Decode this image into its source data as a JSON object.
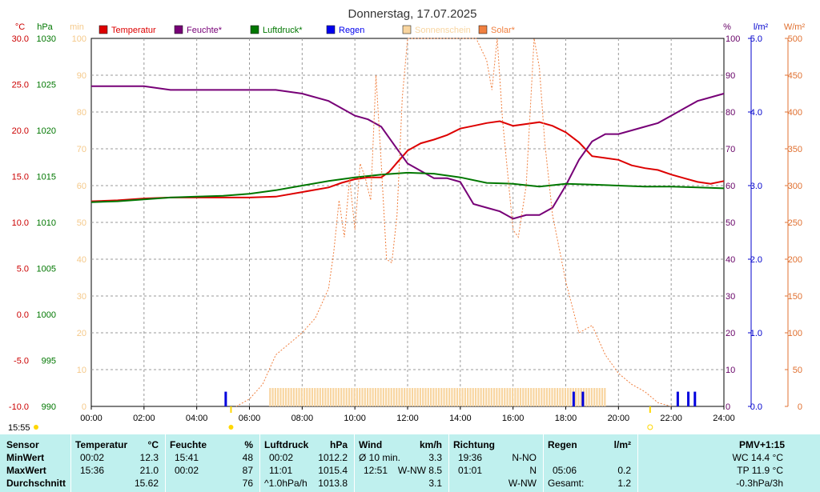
{
  "chart_data": {
    "type": "line",
    "title": "Donnerstag, 17.07.2025",
    "x_ticks": [
      "00:00",
      "02:00",
      "04:00",
      "06:00",
      "08:00",
      "10:00",
      "12:00",
      "14:00",
      "16:00",
      "18:00",
      "20:00",
      "22:00",
      "24:00"
    ],
    "x_range_hours": [
      0,
      24
    ],
    "axes": [
      {
        "key": "temp",
        "unit": "°C",
        "side": "left",
        "color": "#cc0000",
        "range": [
          -10,
          30
        ],
        "ticks": [
          "30.0",
          "25.0",
          "20.0",
          "15.0",
          "10.0",
          "5.0",
          "0.0",
          "-5.0",
          "-10.0"
        ]
      },
      {
        "key": "press",
        "unit": "hPa",
        "side": "left",
        "color": "#007700",
        "range": [
          990,
          1030
        ],
        "ticks": [
          "1030",
          "1025",
          "1020",
          "1015",
          "1010",
          "1005",
          "1000",
          "995",
          "990"
        ]
      },
      {
        "key": "min",
        "unit": "min",
        "side": "left",
        "color": "#f5c98a",
        "range": [
          0,
          100
        ],
        "ticks": [
          "100",
          "90",
          "80",
          "70",
          "60",
          "50",
          "40",
          "30",
          "20",
          "10",
          "0"
        ]
      },
      {
        "key": "hum",
        "unit": "%",
        "side": "right",
        "color": "#660066",
        "range": [
          0,
          100
        ],
        "ticks": [
          "100",
          "90",
          "80",
          "70",
          "60",
          "50",
          "40",
          "30",
          "20",
          "10",
          "0"
        ]
      },
      {
        "key": "rain",
        "unit": "l/m²",
        "side": "right",
        "color": "#0000cc",
        "range": [
          0,
          5
        ],
        "ticks": [
          "5.0",
          "4.0",
          "3.0",
          "2.0",
          "1.0",
          "0.0"
        ]
      },
      {
        "key": "solar",
        "unit": "W/m²",
        "side": "right",
        "color": "#e07030",
        "range": [
          0,
          500
        ],
        "ticks": [
          "500",
          "450",
          "400",
          "350",
          "300",
          "250",
          "200",
          "150",
          "100",
          "50",
          "0"
        ]
      }
    ],
    "legend": [
      {
        "label": "Temperatur",
        "color": "#dd0000"
      },
      {
        "label": "Feuchte*",
        "color": "#770077"
      },
      {
        "label": "Luftdruck*",
        "color": "#007700"
      },
      {
        "label": "Regen",
        "color": "#0000ee"
      },
      {
        "label": "Sonnenschein",
        "color": "#f8d5a0"
      },
      {
        "label": "Solar*",
        "color": "#f08040"
      }
    ],
    "series": [
      {
        "name": "Temperatur",
        "axis": "temp",
        "color": "#dd0000",
        "x": [
          0,
          1,
          2,
          3,
          4,
          5,
          6,
          7,
          8,
          9,
          9.5,
          10,
          10.5,
          11,
          11.3,
          11.6,
          12,
          12.5,
          13,
          13.5,
          14,
          14.5,
          15,
          15.5,
          16,
          16.5,
          17,
          17.5,
          18,
          18.5,
          19,
          19.5,
          20,
          20.5,
          21,
          21.5,
          22,
          22.5,
          23,
          23.5,
          24
        ],
        "y": [
          12.3,
          12.4,
          12.6,
          12.7,
          12.7,
          12.7,
          12.7,
          12.8,
          13.3,
          13.8,
          14.3,
          14.7,
          14.9,
          14.9,
          15.5,
          16.5,
          17.8,
          18.6,
          19.0,
          19.5,
          20.2,
          20.5,
          20.8,
          21.0,
          20.5,
          20.7,
          20.9,
          20.5,
          19.8,
          18.7,
          17.2,
          17.0,
          16.8,
          16.2,
          15.9,
          15.7,
          15.2,
          14.8,
          14.4,
          14.2,
          14.5
        ]
      },
      {
        "name": "Feuchte*",
        "axis": "hum",
        "color": "#770077",
        "x": [
          0,
          1,
          2,
          3,
          4,
          5,
          6,
          7,
          8,
          9,
          9.5,
          10,
          10.5,
          11,
          11.5,
          12,
          12.5,
          13,
          13.5,
          14,
          14.5,
          15,
          15.5,
          16,
          16.5,
          17,
          17.5,
          18,
          18.5,
          19,
          19.5,
          20,
          20.5,
          21,
          21.5,
          22,
          22.5,
          23,
          23.5,
          24
        ],
        "y": [
          87,
          87,
          87,
          86,
          86,
          86,
          86,
          86,
          85,
          83,
          81,
          79,
          78,
          76,
          71,
          66,
          64,
          62,
          62,
          61,
          55,
          54,
          53,
          51,
          52,
          52,
          54,
          60,
          67,
          72,
          74,
          74,
          75,
          76,
          77,
          79,
          81,
          83,
          84,
          85
        ]
      },
      {
        "name": "Luftdruck*",
        "axis": "press",
        "color": "#007700",
        "x": [
          0,
          1,
          2,
          3,
          4,
          5,
          6,
          7,
          8,
          9,
          10,
          11,
          12,
          13,
          14,
          15,
          16,
          17,
          18,
          19,
          20,
          21,
          22,
          23,
          24
        ],
        "y": [
          1012.2,
          1012.3,
          1012.5,
          1012.7,
          1012.8,
          1012.9,
          1013.1,
          1013.5,
          1014.0,
          1014.5,
          1014.9,
          1015.2,
          1015.4,
          1015.3,
          1014.9,
          1014.3,
          1014.2,
          1013.9,
          1014.2,
          1014.1,
          1014.0,
          1013.9,
          1013.9,
          1013.8,
          1013.7
        ]
      },
      {
        "name": "Solar*",
        "axis": "solar",
        "color": "#f08040",
        "x": [
          5.5,
          6,
          6.5,
          7,
          7.5,
          8,
          8.5,
          9,
          9.2,
          9.4,
          9.6,
          9.8,
          10,
          10.2,
          10.4,
          10.6,
          10.8,
          11,
          11.2,
          11.4,
          11.6,
          11.8,
          12,
          12.5,
          13,
          13.5,
          14,
          14.2,
          14.6,
          15,
          15.2,
          15.4,
          15.6,
          16,
          16.2,
          16.5,
          16.8,
          17,
          17.2,
          17.5,
          18,
          18.5,
          19,
          19.5,
          20,
          20.5,
          21,
          21.5,
          22
        ],
        "y": [
          0,
          10,
          30,
          70,
          85,
          100,
          120,
          160,
          210,
          280,
          230,
          310,
          240,
          330,
          310,
          280,
          450,
          330,
          200,
          195,
          260,
          420,
          500,
          500,
          500,
          500,
          500,
          500,
          500,
          470,
          430,
          500,
          390,
          240,
          230,
          300,
          500,
          460,
          360,
          260,
          170,
          100,
          110,
          70,
          45,
          30,
          20,
          5,
          0
        ]
      }
    ],
    "rain": {
      "axis": "rain",
      "color": "#0000dd",
      "x": [
        5.1,
        18.3,
        18.65,
        22.25,
        22.65,
        22.9
      ],
      "y": [
        0.2,
        0.2,
        0.2,
        0.2,
        0.2,
        0.2
      ]
    },
    "sunshine": {
      "color": "#f8d5a0",
      "start": 6.75,
      "end": 19.5,
      "value": 5
    },
    "markers": {
      "time_label": "15:55",
      "sunrise": 5.3,
      "sunset": 21.2
    }
  },
  "stats": {
    "sensor_header": "Sensor",
    "min_label": "MinWert",
    "max_label": "MaxWert",
    "avg_label": "Durchschnitt",
    "temp_header": "Temperatur",
    "temp_unit": "°C",
    "temp_min_time": "00:02",
    "temp_min_val": "12.3",
    "temp_max_time": "15:36",
    "temp_max_val": "21.0",
    "temp_avg_val": "15.62",
    "hum_header": "Feuchte",
    "hum_unit": "%",
    "hum_min_time": "15:41",
    "hum_min_val": "48",
    "hum_max_time": "00:02",
    "hum_max_val": "87",
    "hum_avg_val": "76",
    "press_header": "Luftdruck",
    "press_unit": "hPa",
    "press_min_time": "00:02",
    "press_min_val": "1012.2",
    "press_max_time": "11:01",
    "press_max_val": "1015.4",
    "press_avg_label": "^1.0hPa/h",
    "press_avg_val": "1013.8",
    "wind_header": "Wind",
    "wind_unit": "km/h",
    "wind_min_label": "Ø 10 min.",
    "wind_min_val": "3.3",
    "wind_max_time": "12:51",
    "wind_max_val": "W-NW 8.5",
    "wind_avg_val": "3.1",
    "dir_header": "Richtung",
    "dir_min_time": "19:36",
    "dir_min_val": "N-NO",
    "dir_max_time": "01:01",
    "dir_max_val": "N",
    "dir_avg_val": "W-NW",
    "rain_header": "Regen",
    "rain_unit": "l/m²",
    "rain_max_time": "05:06",
    "rain_max_val": "0.2",
    "rain_total_label": "Gesamt:",
    "rain_total_val": "1.2",
    "pmv_header": "PMV+1:15",
    "wc": "WC 14.4 °C",
    "tp": "TP 11.9 °C",
    "trend": "-0.3hPa/3h"
  }
}
